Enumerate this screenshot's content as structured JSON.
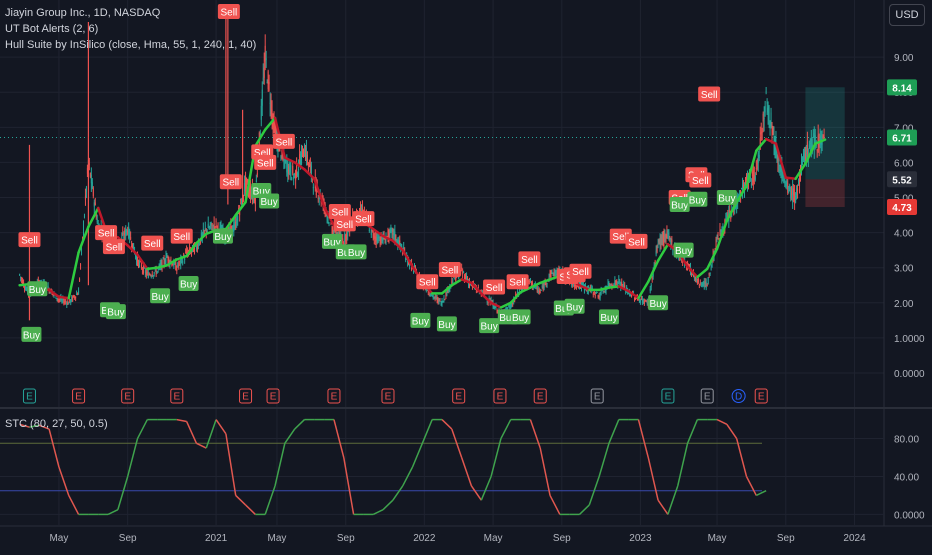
{
  "legend": {
    "symbol": "Jiayin Group Inc., 1D, NASDAQ",
    "indicator1": "UT Bot Alerts (2, 6)",
    "indicator2": "Hull Suite by InSilico (close, Hma, 55, 1, 240, 1, 40)"
  },
  "currency_button": "USD",
  "osc_legend": "STC (80, 27, 50, 0.5)",
  "colors": {
    "bg": "#131722",
    "up": "#26a69a",
    "down": "#ef5350",
    "buy": "#4caf50",
    "sell": "#f05350",
    "hull_up": "#2ecc40",
    "hull_down": "#c0182a",
    "green_label": "#1e9e55",
    "red_label": "#e53935",
    "osc_line_up": "#3fa34d",
    "osc_line_down": "#e0574f"
  },
  "chart_data": [
    {
      "type": "line",
      "name": "price",
      "xlabels": [
        "May",
        "Sep",
        "2021",
        "May",
        "Sep",
        "2022",
        "May",
        "Sep",
        "2023",
        "May",
        "Sep",
        "2024"
      ],
      "ylim": [
        -0.2,
        10.4
      ],
      "yticks": [
        "9.00",
        "8.00",
        "7.00",
        "6.00",
        "5.00",
        "4.00",
        "3.00",
        "2.00",
        "1.0000",
        "0.0000"
      ],
      "ytick_values": [
        9,
        8,
        7,
        6,
        5,
        4,
        3,
        2,
        1,
        0
      ],
      "price_labels": [
        {
          "text": "8.14",
          "value": 8.14,
          "color": "green"
        },
        {
          "text": "6.71",
          "value": 6.71,
          "color": "green"
        },
        {
          "text": "5.52",
          "value": 5.52,
          "color": "gray"
        },
        {
          "text": "4.73",
          "value": 4.73,
          "color": "red"
        }
      ],
      "x_days": [
        0,
        10,
        20,
        30,
        40,
        50,
        60,
        70,
        80,
        90,
        100,
        110,
        120,
        130,
        140,
        150,
        160,
        170,
        180,
        190,
        200,
        210,
        220,
        230,
        240,
        250,
        260,
        270,
        280,
        290,
        300,
        310,
        320,
        330,
        340,
        350,
        360,
        370,
        380,
        390,
        400,
        410,
        420,
        430,
        440,
        450,
        460,
        470,
        480,
        490,
        500,
        510,
        520,
        530,
        540,
        550,
        560,
        570,
        580,
        590,
        600,
        610,
        620,
        630,
        640,
        650,
        660,
        670,
        680,
        690,
        700,
        710,
        720,
        730,
        740,
        750,
        760,
        770,
        780,
        790,
        800,
        810,
        820
      ],
      "close": [
        2.8,
        2.2,
        2.6,
        2.4,
        2.1,
        2.0,
        2.3,
        6.0,
        4.2,
        3.9,
        3.6,
        4.1,
        3.2,
        2.8,
        2.9,
        3.3,
        3.0,
        3.4,
        3.6,
        4.1,
        4.2,
        3.9,
        4.2,
        5.4,
        5.0,
        9.0,
        6.8,
        6.0,
        5.6,
        6.4,
        5.4,
        4.8,
        4.0,
        3.8,
        4.4,
        4.6,
        3.9,
        3.8,
        4.0,
        3.5,
        3.0,
        2.6,
        2.2,
        2.0,
        2.6,
        2.9,
        2.5,
        2.3,
        2.0,
        1.7,
        1.9,
        2.4,
        2.6,
        2.3,
        2.8,
        2.9,
        2.6,
        2.5,
        2.4,
        2.2,
        2.5,
        2.6,
        2.3,
        2.1,
        2.0,
        3.7,
        3.9,
        3.4,
        3.1,
        2.6,
        2.5,
        3.8,
        4.3,
        4.9,
        5.4,
        5.7,
        7.9,
        6.4,
        5.3,
        5.0,
        6.3,
        6.6,
        6.7
      ],
      "stop_box": {
        "target": 8.14,
        "entry": 5.52,
        "stop": 4.73,
        "from_day": 800,
        "to_day": 840
      },
      "signals": [
        {
          "t": "Sell",
          "day": 10,
          "value": 3.8
        },
        {
          "t": "Buy",
          "day": 12,
          "value": 1.1
        },
        {
          "t": "Buy",
          "day": 18,
          "value": 2.4
        },
        {
          "t": "Sell",
          "day": 88,
          "value": 4.0
        },
        {
          "t": "Sell",
          "day": 96,
          "value": 3.6
        },
        {
          "t": "Buy",
          "day": 92,
          "value": 1.8
        },
        {
          "t": "Buy",
          "day": 98,
          "value": 1.75
        },
        {
          "t": "Sell",
          "day": 135,
          "value": 3.7
        },
        {
          "t": "Buy",
          "day": 143,
          "value": 2.2
        },
        {
          "t": "Sell",
          "day": 165,
          "value": 3.9
        },
        {
          "t": "Buy",
          "day": 172,
          "value": 2.55
        },
        {
          "t": "Sell",
          "day": 215,
          "value": 5.45
        },
        {
          "t": "Buy",
          "day": 207,
          "value": 3.9
        },
        {
          "t": "Sell",
          "day": 213,
          "value": 10.3
        },
        {
          "t": "Sell",
          "day": 247,
          "value": 6.3
        },
        {
          "t": "Sell",
          "day": 250,
          "value": 6.0
        },
        {
          "t": "Buy",
          "day": 246,
          "value": 5.2
        },
        {
          "t": "Buy",
          "day": 254,
          "value": 4.9
        },
        {
          "t": "Sell",
          "day": 269,
          "value": 6.6
        },
        {
          "t": "Sell",
          "day": 326,
          "value": 4.6
        },
        {
          "t": "Sell",
          "day": 331,
          "value": 4.25
        },
        {
          "t": "Sell",
          "day": 350,
          "value": 4.4
        },
        {
          "t": "Buy",
          "day": 318,
          "value": 3.75
        },
        {
          "t": "Buy",
          "day": 332,
          "value": 3.45
        },
        {
          "t": "Buy",
          "day": 343,
          "value": 3.45
        },
        {
          "t": "Sell",
          "day": 415,
          "value": 2.6
        },
        {
          "t": "Sell",
          "day": 438,
          "value": 2.95
        },
        {
          "t": "Buy",
          "day": 408,
          "value": 1.5
        },
        {
          "t": "Buy",
          "day": 435,
          "value": 1.4
        },
        {
          "t": "Sell",
          "day": 483,
          "value": 2.45
        },
        {
          "t": "Sell",
          "day": 507,
          "value": 2.6
        },
        {
          "t": "Sell",
          "day": 519,
          "value": 3.25
        },
        {
          "t": "Buy",
          "day": 478,
          "value": 1.35
        },
        {
          "t": "Buy",
          "day": 497,
          "value": 1.6
        },
        {
          "t": "Buy",
          "day": 510,
          "value": 1.6
        },
        {
          "t": "Sell",
          "day": 558,
          "value": 2.75
        },
        {
          "t": "Sell",
          "day": 565,
          "value": 2.8
        },
        {
          "t": "Sell",
          "day": 571,
          "value": 2.9
        },
        {
          "t": "Buy",
          "day": 554,
          "value": 1.85
        },
        {
          "t": "Buy",
          "day": 565,
          "value": 1.9
        },
        {
          "t": "Buy",
          "day": 600,
          "value": 1.6
        },
        {
          "t": "Sell",
          "day": 612,
          "value": 3.9
        },
        {
          "t": "Sell",
          "day": 628,
          "value": 3.75
        },
        {
          "t": "Buy",
          "day": 650,
          "value": 2.0
        },
        {
          "t": "Buy",
          "day": 676,
          "value": 3.5
        },
        {
          "t": "Sell",
          "day": 672,
          "value": 5.0
        },
        {
          "t": "Sell",
          "day": 689,
          "value": 5.65
        },
        {
          "t": "Sell",
          "day": 693,
          "value": 5.5
        },
        {
          "t": "Buy",
          "day": 672,
          "value": 4.8
        },
        {
          "t": "Buy",
          "day": 690,
          "value": 4.95
        },
        {
          "t": "Sell",
          "day": 702,
          "value": 7.95
        },
        {
          "t": "Buy",
          "day": 720,
          "value": 5.0
        }
      ],
      "earnings_markers": [
        {
          "day": 10,
          "kind": "green"
        },
        {
          "day": 60,
          "kind": "red"
        },
        {
          "day": 110,
          "kind": "red"
        },
        {
          "day": 160,
          "kind": "red"
        },
        {
          "day": 230,
          "kind": "red"
        },
        {
          "day": 258,
          "kind": "red"
        },
        {
          "day": 320,
          "kind": "red"
        },
        {
          "day": 375,
          "kind": "red"
        },
        {
          "day": 447,
          "kind": "red"
        },
        {
          "day": 489,
          "kind": "red"
        },
        {
          "day": 530,
          "kind": "red"
        },
        {
          "day": 588,
          "kind": "gray"
        },
        {
          "day": 660,
          "kind": "green"
        },
        {
          "day": 700,
          "kind": "gray"
        },
        {
          "day": 732,
          "kind": "blue"
        },
        {
          "day": 755,
          "kind": "red"
        }
      ]
    },
    {
      "type": "line",
      "name": "STC",
      "ylim": [
        -8,
        108
      ],
      "yticks": [
        "80.00",
        "40.00",
        "0.0000"
      ],
      "ytick_values": [
        80,
        40,
        0
      ],
      "upper": 75,
      "lower": 25,
      "x_days": [
        0,
        10,
        20,
        30,
        40,
        50,
        60,
        70,
        80,
        90,
        100,
        110,
        120,
        130,
        140,
        150,
        160,
        170,
        180,
        190,
        200,
        210,
        220,
        230,
        240,
        250,
        260,
        270,
        280,
        290,
        300,
        310,
        320,
        330,
        340,
        350,
        360,
        370,
        380,
        390,
        400,
        410,
        420,
        430,
        440,
        450,
        460,
        470,
        480,
        490,
        500,
        510,
        520,
        530,
        540,
        550,
        560,
        570,
        580,
        590,
        600,
        610,
        620,
        630,
        640,
        650,
        660,
        670,
        680,
        690,
        700,
        710,
        720,
        730,
        740,
        750,
        760
      ],
      "values": [
        95,
        92,
        94,
        90,
        50,
        20,
        0,
        0,
        0,
        0,
        5,
        40,
        80,
        100,
        100,
        100,
        100,
        98,
        75,
        70,
        100,
        85,
        20,
        10,
        0,
        0,
        30,
        75,
        90,
        100,
        100,
        100,
        100,
        60,
        0,
        0,
        0,
        5,
        15,
        30,
        50,
        75,
        100,
        100,
        90,
        60,
        30,
        15,
        40,
        80,
        100,
        100,
        100,
        70,
        20,
        0,
        0,
        0,
        10,
        40,
        75,
        100,
        100,
        100,
        60,
        15,
        0,
        30,
        75,
        100,
        100,
        100,
        95,
        80,
        40,
        20,
        25
      ]
    }
  ]
}
